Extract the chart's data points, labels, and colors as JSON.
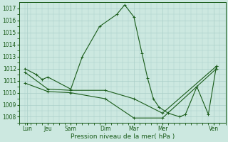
{
  "xlabel": "Pression niveau de la mer( hPa )",
  "background_color": "#cce8e0",
  "grid_color": "#aacfc8",
  "line_color": "#1a5c1a",
  "xlim": [
    0,
    18
  ],
  "ylim": [
    1007.5,
    1017.5
  ],
  "yticks": [
    1008,
    1009,
    1010,
    1011,
    1012,
    1013,
    1014,
    1015,
    1016,
    1017
  ],
  "xtick_labels": [
    "Lun",
    "Jeu",
    "Sam",
    "Dim",
    "Mar",
    "Mer",
    "Ven"
  ],
  "xtick_positions": [
    0.7,
    2.5,
    4.5,
    7.5,
    10.0,
    12.5,
    17.0
  ],
  "line1_x": [
    0.5,
    1.5,
    2.0,
    2.5,
    4.5,
    5.5,
    7.0,
    8.5,
    9.2,
    10.0,
    10.7,
    11.2,
    11.7,
    12.2,
    13.0,
    14.0,
    14.5,
    15.5,
    16.5,
    17.2
  ],
  "line1_y": [
    1012.0,
    1011.5,
    1011.1,
    1011.3,
    1010.3,
    1013.0,
    1015.5,
    1016.5,
    1017.3,
    1016.3,
    1013.3,
    1011.2,
    1009.5,
    1008.8,
    1008.3,
    1008.0,
    1008.2,
    1010.5,
    1008.2,
    1012.2
  ],
  "line2_x": [
    0.5,
    2.5,
    4.5,
    7.5,
    10.0,
    12.5,
    17.2
  ],
  "line2_y": [
    1011.7,
    1010.3,
    1010.2,
    1010.2,
    1009.5,
    1008.3,
    1012.2
  ],
  "line3_x": [
    0.5,
    2.5,
    4.5,
    7.5,
    10.0,
    12.5,
    17.2
  ],
  "line3_y": [
    1010.8,
    1010.1,
    1010.0,
    1009.5,
    1007.9,
    1007.9,
    1012.0
  ]
}
